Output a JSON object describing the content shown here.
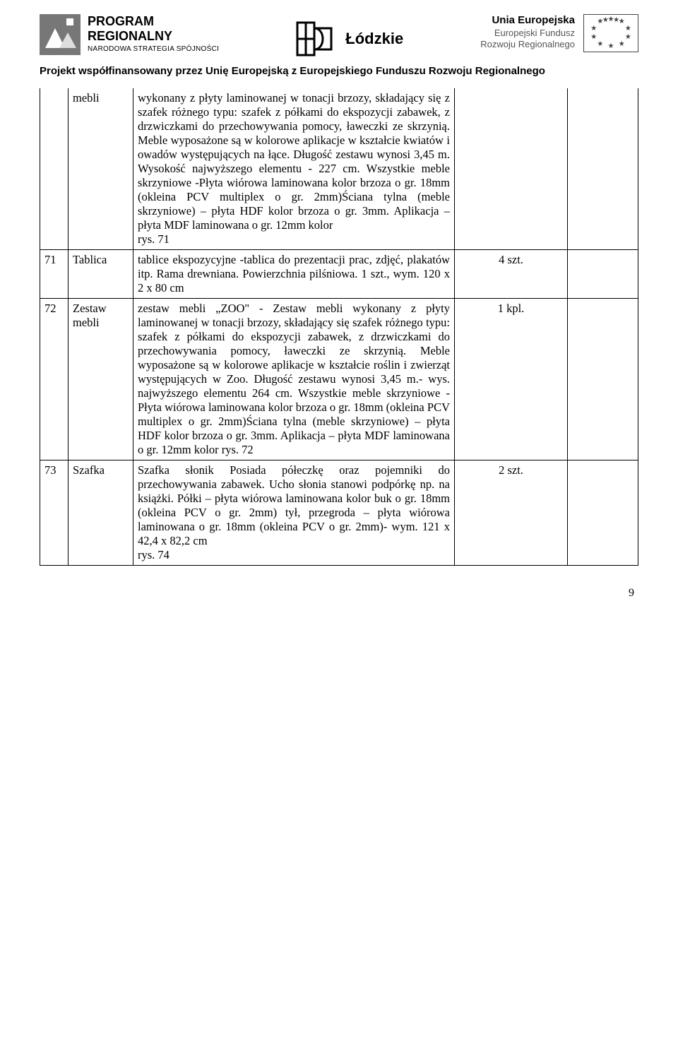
{
  "header": {
    "left": {
      "line1": "PROGRAM",
      "line2": "REGIONALNY",
      "line3": "NARODOWA STRATEGIA SPÓJNOŚCI"
    },
    "center": "Łódzkie",
    "right": {
      "line1": "Unia Europejska",
      "line2": "Europejski Fundusz",
      "line3": "Rozwoju Regionalnego"
    }
  },
  "subtitle": "Projekt współfinansowany przez Unię Europejską z Europejskiego Funduszu Rozwoju Regionalnego",
  "rows": [
    {
      "num": "",
      "name": "mebli",
      "desc": "wykonany z płyty laminowanej w tonacji brzozy, składający się z szafek różnego typu: szafek z półkami do ekspozycji zabawek, z drzwiczkami do przechowywania pomocy, ławeczki ze skrzynią. Meble wyposażone są w kolorowe aplikacje w kształcie kwiatów i owadów występujących na łące. Długość zestawu wynosi 3,45 m. Wysokość najwyższego elementu - 227 cm. Wszystkie meble skrzyniowe -Płyta wiórowa laminowana kolor brzoza o gr. 18mm (okleina PCV multiplex o gr. 2mm)Ściana tylna (meble skrzyniowe) – płyta HDF kolor brzoza o gr. 3mm. Aplikacja – płyta MDF laminowana o gr. 12mm kolor\nrys. 71",
      "qty": "",
      "firstRow": true
    },
    {
      "num": "71",
      "name": "Tablica",
      "desc": "tablice ekspozycyjne -tablica do prezentacji prac, zdjęć, plakatów itp. Rama drewniana. Powierzchnia pilśniowa. 1 szt., wym. 120 x 2 x 80 cm",
      "qty": "4 szt."
    },
    {
      "num": "72",
      "name": "Zestaw mebli",
      "desc": "zestaw mebli „ZOO\" - Zestaw mebli wykonany z płyty laminowanej w tonacji brzozy, składający się szafek różnego typu: szafek z półkami do ekspozycji zabawek, z drzwiczkami do przechowywania pomocy, ławeczki ze skrzynią. Meble wyposażone są w kolorowe aplikacje w kształcie roślin i zwierząt występujących w Zoo. Długość zestawu wynosi 3,45 m.- wys. najwyższego elementu 264 cm. Wszystkie meble skrzyniowe -Płyta wiórowa laminowana kolor brzoza o gr. 18mm (okleina PCV multiplex o gr. 2mm)Ściana tylna (meble skrzyniowe) – płyta HDF kolor brzoza o gr. 3mm. Aplikacja – płyta MDF laminowana o gr. 12mm kolor rys. 72",
      "qty": "1 kpl."
    },
    {
      "num": "73",
      "name": "Szafka",
      "desc": "Szafka słonik Posiada półeczkę oraz pojemniki do przechowywania zabawek. Ucho słonia stanowi podpórkę np. na książki. Półki – płyta wiórowa laminowana kolor buk o gr. 18mm (okleina PCV o gr. 2mm) tył, przegroda – płyta wiórowa laminowana o gr. 18mm (okleina PCV o gr. 2mm)- wym. 121 x 42,4 x 82,2 cm\nrys. 74",
      "qty": "2 szt."
    }
  ],
  "pageNumber": "9"
}
